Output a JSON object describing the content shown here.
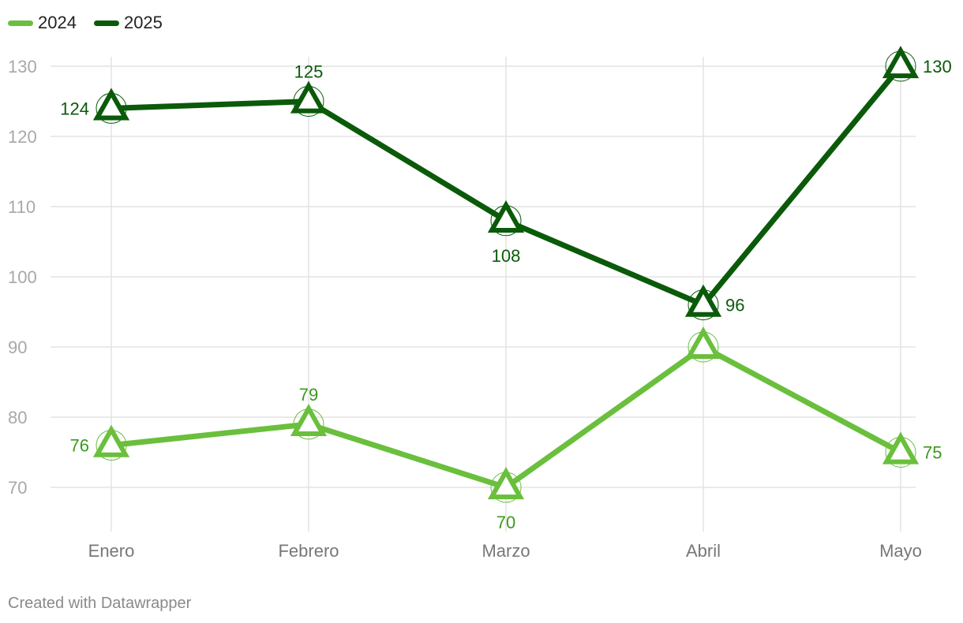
{
  "chart_data": {
    "type": "line",
    "title": "",
    "xlabel": "",
    "ylabel": "",
    "categories": [
      "Enero",
      "Febrero",
      "Marzo",
      "Abril",
      "Mayo"
    ],
    "yticks": [
      70,
      80,
      90,
      100,
      110,
      120,
      130
    ],
    "ylim": [
      63.5,
      131.5
    ],
    "grid": true,
    "legend_position": "top-left",
    "series": [
      {
        "name": "2024",
        "color": "#6abf3c",
        "label_color": "#3a9a1c",
        "marker": "triangle",
        "values": [
          76,
          79,
          70,
          90,
          75
        ],
        "data_labels": [
          "76",
          "79",
          "70",
          null,
          "75"
        ],
        "label_positions": [
          "left",
          "top",
          "bottom",
          null,
          "right"
        ]
      },
      {
        "name": "2025",
        "color": "#0a5a0a",
        "label_color": "#0a5a0a",
        "marker": "triangle",
        "values": [
          124,
          125,
          108,
          96,
          130
        ],
        "data_labels": [
          "124",
          "125",
          "108",
          "96",
          "130"
        ],
        "label_positions": [
          "left",
          "top",
          "bottom",
          "right",
          "right"
        ]
      }
    ]
  },
  "legend": {
    "items": [
      {
        "label": "2024",
        "color": "#6abf3c"
      },
      {
        "label": "2025",
        "color": "#0a5a0a"
      }
    ]
  },
  "footer": {
    "credit": "Created with Datawrapper"
  }
}
